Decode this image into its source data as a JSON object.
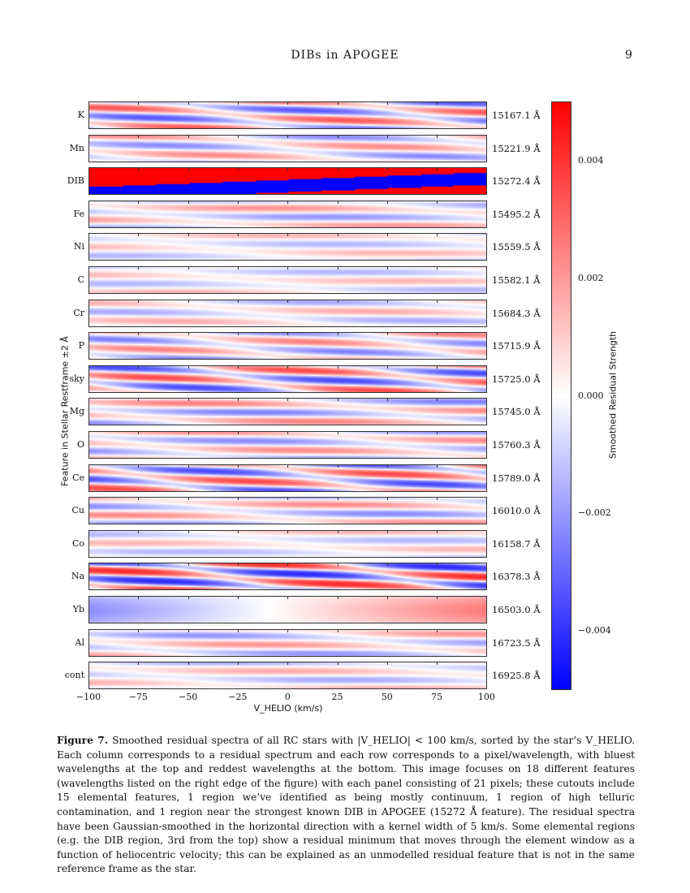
{
  "header": {
    "title": "DIBs in APOGEE",
    "page": "9"
  },
  "figure": {
    "panels": [
      {
        "feature": "K",
        "wavelength": "15167.1 Å"
      },
      {
        "feature": "Mn",
        "wavelength": "15221.9 Å"
      },
      {
        "feature": "DIB",
        "wavelength": "15272.4 Å"
      },
      {
        "feature": "Fe",
        "wavelength": "15495.2 Å"
      },
      {
        "feature": "Ni",
        "wavelength": "15559.5 Å"
      },
      {
        "feature": "C",
        "wavelength": "15582.1 Å"
      },
      {
        "feature": "Cr",
        "wavelength": "15684.3 Å"
      },
      {
        "feature": "P",
        "wavelength": "15715.9 Å"
      },
      {
        "feature": "sky",
        "wavelength": "15725.0 Å"
      },
      {
        "feature": "Mg",
        "wavelength": "15745.0 Å"
      },
      {
        "feature": "O",
        "wavelength": "15760.3 Å"
      },
      {
        "feature": "Ce",
        "wavelength": "15789.0 Å"
      },
      {
        "feature": "Cu",
        "wavelength": "16010.0 Å"
      },
      {
        "feature": "Co",
        "wavelength": "16158.7 Å"
      },
      {
        "feature": "Na",
        "wavelength": "16378.3 Å"
      },
      {
        "feature": "Yb",
        "wavelength": "16503.0 Å"
      },
      {
        "feature": "Al",
        "wavelength": "16723.5 Å"
      },
      {
        "feature": "cont",
        "wavelength": "16925.8 Å"
      }
    ],
    "xticks": [
      "−100",
      "−75",
      "−50",
      "−25",
      "0",
      "25",
      "50",
      "75",
      "100"
    ],
    "xlabel": "V_HELIO (km/s)",
    "ylabel": "Feature in Stellar Restframe ±2 Å",
    "colorbar": {
      "label": "Smoothed Residual Strength",
      "ticks": [
        "0.004",
        "0.002",
        "0.000",
        "−0.002",
        "−0.004"
      ],
      "range": [
        -0.005,
        0.005
      ],
      "colormap": "bwr",
      "colors": {
        "high": "#ff0000",
        "mid": "#ffffff",
        "low": "#0000ff"
      }
    }
  },
  "caption": {
    "label": "Figure 7.",
    "text": "Smoothed residual spectra of all RC stars with |V_HELIO| < 100 km/s, sorted by the star’s V_HELIO. Each column corresponds to a residual spectrum and each row corresponds to a pixel/wavelength, with bluest wavelengths at the top and reddest wavelengths at the bottom. This image focuses on 18 different features (wavelengths listed on the right edge of the figure) with each panel consisting of 21 pixels; these cutouts include 15 elemental features, 1 region we’ve identified as being mostly continuum, 1 region of high telluric contamination, and 1 region near the strongest known DIB in APOGEE (15272 Å feature). The residual spectra have been Gaussian-smoothed in the horizontal direction with a kernel width of 5 km/s. Some elemental regions (e.g. the DIB region, 3rd from the top) show a residual minimum that moves through the element window as a function of heliocentric velocity; this can be explained as an unmodelled residual feature that is not in the same reference frame as the star."
  }
}
